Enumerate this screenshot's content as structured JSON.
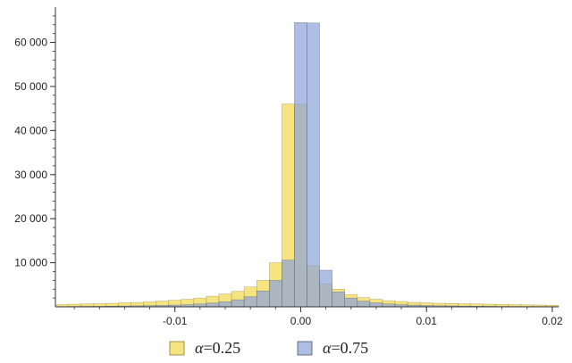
{
  "chart_data": {
    "type": "bar",
    "subtype": "overlaid-histogram",
    "title": "",
    "xlabel": "",
    "ylabel": "",
    "xlim": [
      -0.0195,
      0.0205
    ],
    "ylim": [
      0,
      68000
    ],
    "grid": false,
    "legend_position": "bottom",
    "bin_width": 0.001,
    "bin_start": -0.0195,
    "bin_count": 40,
    "x_ticks": [
      {
        "value": -0.01,
        "label": "-0.01"
      },
      {
        "value": 0.0,
        "label": "0.00"
      },
      {
        "value": 0.01,
        "label": "0.01"
      },
      {
        "value": 0.02,
        "label": "0.02"
      }
    ],
    "y_ticks": [
      {
        "value": 10000,
        "label": "10 000"
      },
      {
        "value": 20000,
        "label": "20 000"
      },
      {
        "value": 30000,
        "label": "30 000"
      },
      {
        "value": 40000,
        "label": "40 000"
      },
      {
        "value": 50000,
        "label": "50 000"
      },
      {
        "value": 60000,
        "label": "60 000"
      }
    ],
    "series": [
      {
        "name": "α=0.25",
        "legend_prefix": "α",
        "legend_suffix": "=0.25",
        "color": "#f5df6b",
        "values": [
          500,
          600,
          650,
          700,
          800,
          900,
          1000,
          1100,
          1300,
          1500,
          1700,
          2000,
          2400,
          2900,
          3500,
          4500,
          6000,
          10000,
          46000,
          46000,
          9300,
          5200,
          4000,
          2800,
          2100,
          1700,
          1400,
          1200,
          1000,
          900,
          800,
          750,
          700,
          650,
          600,
          550,
          500,
          450,
          400,
          350
        ]
      },
      {
        "name": "α=0.75",
        "legend_prefix": "α",
        "legend_suffix": "=0.75",
        "color": "#8ea3d8",
        "values": [
          60,
          80,
          100,
          120,
          150,
          180,
          220,
          260,
          320,
          400,
          500,
          650,
          850,
          1150,
          1600,
          2300,
          3600,
          6000,
          10600,
          64500,
          64400,
          8300,
          3400,
          2000,
          1300,
          900,
          650,
          500,
          380,
          300,
          240,
          200,
          170,
          140,
          120,
          100,
          90,
          80,
          70,
          60
        ]
      }
    ]
  }
}
